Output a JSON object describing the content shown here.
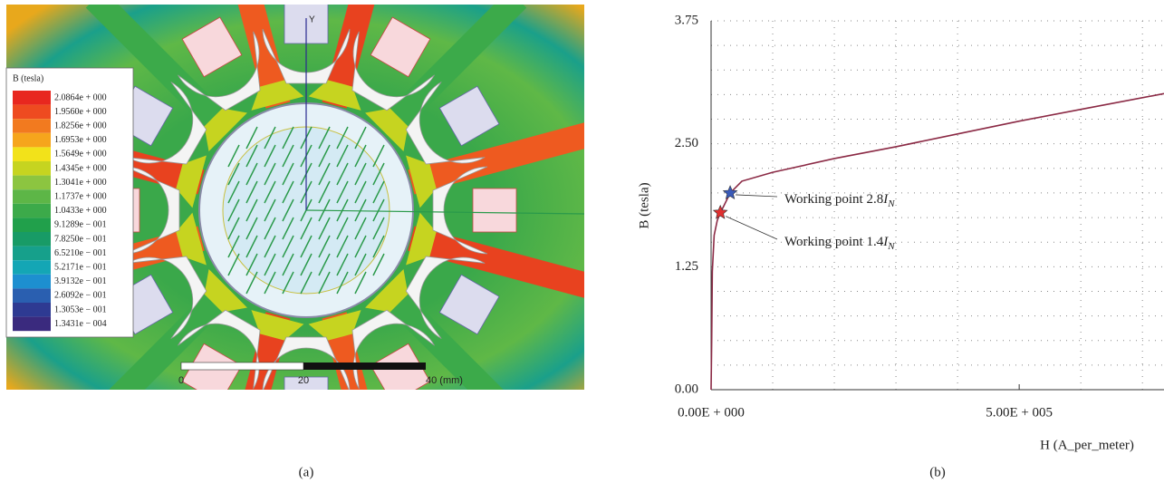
{
  "panel_a": {
    "legend_title": "B (tesla)",
    "levels": [
      {
        "label": "2.0864e + 000",
        "color": "#e8271f"
      },
      {
        "label": "1.9560e + 000",
        "color": "#ee4b20"
      },
      {
        "label": "1.8256e + 000",
        "color": "#f27a1f"
      },
      {
        "label": "1.6953e + 000",
        "color": "#f6a51c"
      },
      {
        "label": "1.5649e + 000",
        "color": "#f2e21a"
      },
      {
        "label": "1.4345e + 000",
        "color": "#c6d420"
      },
      {
        "label": "1.3041e + 000",
        "color": "#8cc540"
      },
      {
        "label": "1.1737e + 000",
        "color": "#5db647"
      },
      {
        "label": "1.0433e + 000",
        "color": "#3caa4a"
      },
      {
        "label": "9.1289e − 001",
        "color": "#21a04b"
      },
      {
        "label": "7.8250e − 001",
        "color": "#189b66"
      },
      {
        "label": "6.5210e − 001",
        "color": "#16a08b"
      },
      {
        "label": "5.2171e − 001",
        "color": "#14a6b5"
      },
      {
        "label": "3.9132e − 001",
        "color": "#1d8fd0"
      },
      {
        "label": "2.6092e − 001",
        "color": "#2a5fb0"
      },
      {
        "label": "1.3053e − 001",
        "color": "#2e3a92"
      },
      {
        "label": "1.3431e − 004",
        "color": "#3a2a7e"
      }
    ],
    "axis_label": "Y",
    "scale_labels": [
      "0",
      "20",
      "40 (mm)"
    ],
    "caption": "(a)"
  },
  "chart_data": {
    "type": "line",
    "x_label": "H (A_per_meter)",
    "y_label": "B (tesla)",
    "xlim": [
      0,
      735000
    ],
    "ylim": [
      0,
      3.75
    ],
    "xticks": [
      {
        "value": 0,
        "label": "0.00E + 000"
      },
      {
        "value": 500000,
        "label": "5.00E + 005"
      }
    ],
    "yticks": [
      {
        "value": 0,
        "label": "0.00"
      },
      {
        "value": 1.25,
        "label": "1.25"
      },
      {
        "value": 2.5,
        "label": "2.50"
      },
      {
        "value": 3.75,
        "label": "3.75"
      }
    ],
    "x_minor_ticks": [
      100000,
      200000,
      300000,
      400000,
      600000,
      700000
    ],
    "y_minor_ticks": [
      0.25,
      0.5,
      0.75,
      1,
      1.5,
      1.75,
      2,
      2.25,
      2.75,
      3,
      3.25,
      3.5
    ],
    "grid": true,
    "series": [
      {
        "color": "#8b2a45",
        "x": [
          0,
          1000,
          2000,
          5000,
          10000,
          15000,
          20000,
          31000,
          50000,
          100000,
          200000,
          300000,
          400000,
          500000,
          600000,
          735000
        ],
        "values": [
          0,
          0.5,
          1.2,
          1.57,
          1.72,
          1.8,
          1.86,
          2.0,
          2.12,
          2.21,
          2.35,
          2.47,
          2.6,
          2.73,
          2.85,
          3.01
        ]
      }
    ],
    "points": [
      {
        "x": 31000,
        "y": 2.0,
        "color": "#3a5ab8",
        "text": "Working point 2.8",
        "var": "I",
        "sub": "N"
      },
      {
        "x": 15000,
        "y": 1.8,
        "color": "#e03030",
        "text": "Working point 1.4",
        "var": "I",
        "sub": "N"
      }
    ],
    "caption": "(b)"
  }
}
